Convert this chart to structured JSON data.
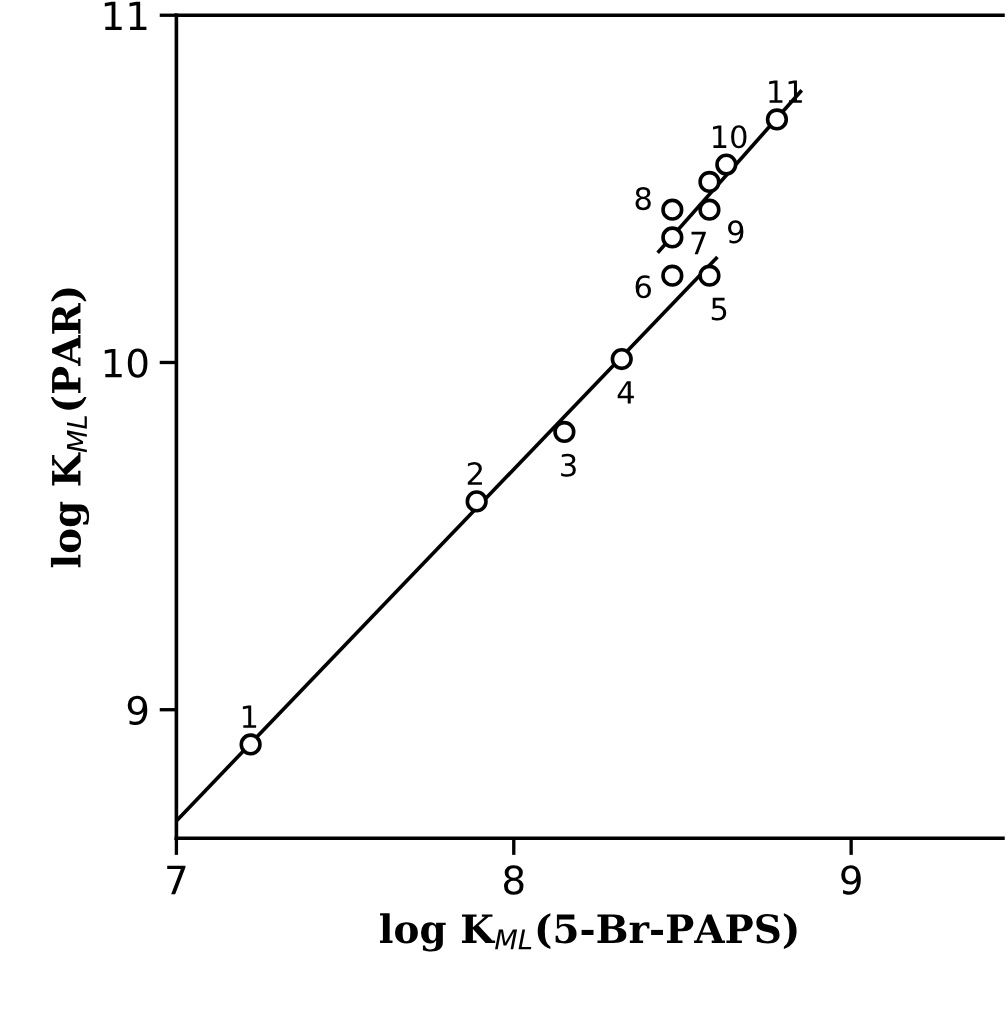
{
  "chart_data": {
    "type": "scatter",
    "xlabel": "log K$_{ML}$(5-Br-PAPS)",
    "ylabel": "log K$_{ML}$(PAR)",
    "xlim": [
      7,
      9.45
    ],
    "ylim": [
      8.63,
      11.0
    ],
    "xticks": [
      7,
      8,
      9
    ],
    "yticks": [
      9,
      10,
      11
    ],
    "grid": false,
    "series": [
      {
        "marker": "circle",
        "color": "#000000",
        "x": [
          7.22,
          7.89,
          8.15,
          8.32,
          8.58,
          8.47,
          8.47,
          8.47,
          8.58,
          8.58,
          8.63,
          8.78
        ],
        "values": [
          8.9,
          9.6,
          9.8,
          10.01,
          10.25,
          10.25,
          10.36,
          10.44,
          10.44,
          10.52,
          10.57,
          10.7
        ]
      },
      {
        "type": "line",
        "marker": "none",
        "color": "#000000",
        "line_style": "solid",
        "x": [
          7.0,
          8.6
        ],
        "values": [
          8.68,
          10.3
        ]
      },
      {
        "type": "line",
        "marker": "none",
        "color": "#000000",
        "line_style": "solid",
        "x": [
          8.43,
          8.85
        ],
        "values": [
          10.32,
          10.78
        ]
      }
    ],
    "annotations": [
      {
        "text": "1",
        "x": 7.22,
        "y": 8.9
      },
      {
        "text": "2",
        "x": 7.89,
        "y": 9.6
      },
      {
        "text": "3",
        "x": 8.15,
        "y": 9.8
      },
      {
        "text": "4",
        "x": 8.32,
        "y": 10.01
      },
      {
        "text": "5",
        "x": 8.58,
        "y": 10.25
      },
      {
        "text": "6",
        "x": 8.47,
        "y": 10.25
      },
      {
        "text": "7",
        "x": 8.47,
        "y": 10.36
      },
      {
        "text": "8",
        "x": 8.47,
        "y": 10.44
      },
      {
        "text": "9",
        "x": 8.58,
        "y": 10.44
      },
      {
        "text": "10",
        "x": 8.63,
        "y": 10.57
      },
      {
        "text": "11",
        "x": 8.78,
        "y": 10.7
      }
    ]
  }
}
